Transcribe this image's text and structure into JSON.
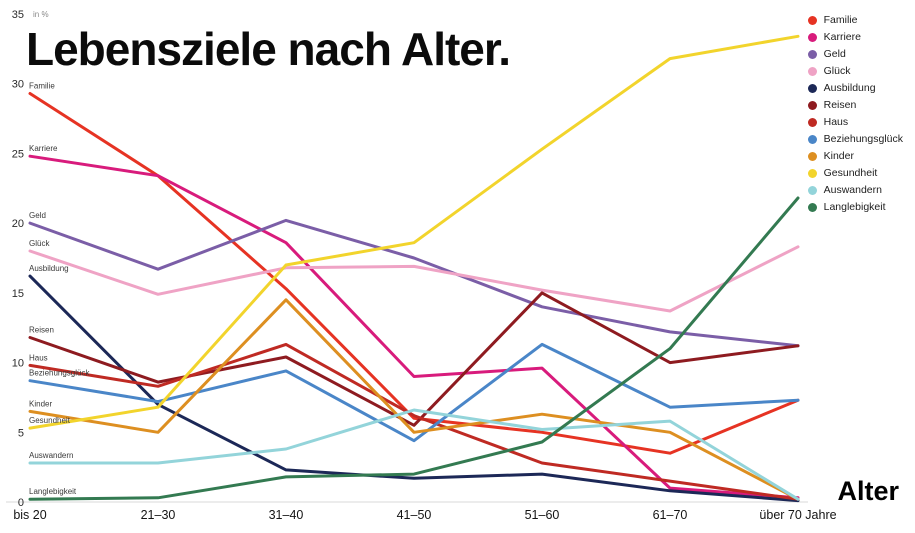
{
  "title": "Lebensziele nach Alter.",
  "axis": {
    "unit_note": "in %",
    "x_title": "Alter"
  },
  "chart_data": {
    "type": "line",
    "title": "Lebensziele nach Alter.",
    "ylabel": "in %",
    "xlabel": "Alter",
    "ylim": [
      0,
      35
    ],
    "yticks": [
      0,
      5,
      10,
      15,
      20,
      25,
      30,
      35
    ],
    "grid": false,
    "legend_position": "top-right",
    "categories": [
      "bis 20",
      "21–30",
      "31–40",
      "41–50",
      "51–60",
      "61–70",
      "über 70 Jahre"
    ],
    "series": [
      {
        "name": "Familie",
        "color": "#e63323",
        "values": [
          29.3,
          23.4,
          15.3,
          6.0,
          5.0,
          3.5,
          7.3
        ]
      },
      {
        "name": "Karriere",
        "color": "#d81b7c",
        "values": [
          24.8,
          23.4,
          18.6,
          9.0,
          9.6,
          1.0,
          0.3
        ]
      },
      {
        "name": "Geld",
        "color": "#7b5ea7",
        "values": [
          20.0,
          16.7,
          20.2,
          17.5,
          14.0,
          12.2,
          11.2
        ]
      },
      {
        "name": "Glück",
        "color": "#efa3c5",
        "values": [
          18.0,
          14.9,
          16.8,
          16.9,
          15.2,
          13.7,
          18.3
        ]
      },
      {
        "name": "Ausbildung",
        "color": "#1c2857",
        "values": [
          16.2,
          7.0,
          2.3,
          1.7,
          2.0,
          0.8,
          0.1
        ]
      },
      {
        "name": "Reisen",
        "color": "#8e1b20",
        "values": [
          11.8,
          8.6,
          10.4,
          5.5,
          15.0,
          10.0,
          11.2
        ]
      },
      {
        "name": "Haus",
        "color": "#bf2a23",
        "values": [
          9.8,
          8.3,
          11.3,
          6.2,
          2.8,
          1.5,
          0.2
        ]
      },
      {
        "name": "Beziehungsglück",
        "color": "#4a86c8",
        "values": [
          8.7,
          7.2,
          9.4,
          4.4,
          11.3,
          6.8,
          7.3
        ]
      },
      {
        "name": "Kinder",
        "color": "#dd8f21",
        "values": [
          6.5,
          5.0,
          14.5,
          5.0,
          6.3,
          5.0,
          0.2
        ]
      },
      {
        "name": "Gesundheit",
        "color": "#f2d42c",
        "values": [
          5.3,
          6.8,
          17.0,
          18.6,
          25.3,
          31.8,
          33.4
        ]
      },
      {
        "name": "Auswandern",
        "color": "#93d4da",
        "values": [
          2.8,
          2.8,
          3.8,
          6.6,
          5.2,
          5.8,
          0.2
        ]
      },
      {
        "name": "Langlebigkeit",
        "color": "#337a51",
        "values": [
          0.2,
          0.3,
          1.8,
          2.0,
          4.3,
          11.0,
          21.8
        ]
      }
    ]
  }
}
